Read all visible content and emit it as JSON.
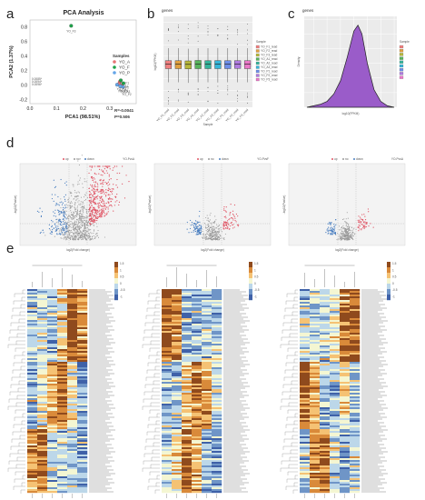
{
  "panels": {
    "a": "a",
    "b": "b",
    "c": "c",
    "d": "d",
    "e": "e"
  },
  "chart_data": [
    {
      "id": "a",
      "type": "scatter",
      "title": "PCA Analysis",
      "xlabel": "PCA1 (98.51%)",
      "ylabel": "PCA2 (1.37%)",
      "xticks": [
        "0.0",
        "0.1",
        "0.2",
        "0.3"
      ],
      "yticks": [
        "-0.2",
        "0.0",
        "0.2",
        "0.4",
        "0.6",
        "0.8"
      ],
      "xlim": [
        0.0,
        0.4
      ],
      "ylim": [
        -0.25,
        0.9
      ],
      "legend_title": "Samples",
      "legend": [
        {
          "name": "YO_A",
          "color": "#e57373"
        },
        {
          "name": "YO_F",
          "color": "#1fa24a"
        },
        {
          "name": "YO_P",
          "color": "#64a5e8"
        }
      ],
      "points": [
        {
          "label": "YO_F3",
          "x": 0.155,
          "y": 0.82,
          "group": 1
        },
        {
          "label": "YO_A1",
          "x": 0.338,
          "y": 0.05,
          "group": 0
        },
        {
          "label": "YO_A2",
          "x": 0.345,
          "y": 0.0,
          "group": 0
        },
        {
          "label": "YO_A3",
          "x": 0.335,
          "y": 0.02,
          "group": 0
        },
        {
          "label": "YO_F1",
          "x": 0.342,
          "y": 0.07,
          "group": 1
        },
        {
          "label": "YO_F2",
          "x": 0.352,
          "y": 0.03,
          "group": 1
        },
        {
          "label": "YO_P1",
          "x": 0.328,
          "y": 0.01,
          "group": 2
        },
        {
          "label": "YO_P2",
          "x": 0.35,
          "y": -0.02,
          "group": 2
        },
        {
          "label": "YO_P3",
          "x": 0.34,
          "y": -0.01,
          "group": 2
        }
      ],
      "left_cluster_labels": [
        "0.0085*",
        "0.0094*",
        "0.0096*"
      ],
      "stats": [
        "R=-0.0041",
        "P=0.506"
      ]
    },
    {
      "id": "b",
      "type": "box",
      "title": "genes",
      "xlabel": "Sample",
      "ylabel": "log10(FPKM)",
      "categories": [
        "YO_F1_read",
        "YO_F2_read",
        "YO_F3_read",
        "YO_A1_read",
        "YO_A2_read",
        "YO_A3_read",
        "YO_P1_read",
        "YO_P2_read",
        "YO_P3_read"
      ],
      "colors": [
        "#f08080",
        "#e0a040",
        "#b8b83a",
        "#59b35c",
        "#35b39a",
        "#37b6d8",
        "#6e8ee8",
        "#b07cdf",
        "#ea78c8"
      ],
      "q1": [
        0.9,
        0.9,
        0.88,
        0.9,
        0.9,
        0.9,
        0.9,
        0.92,
        0.9
      ],
      "median": [
        1.3,
        1.3,
        1.28,
        1.3,
        1.3,
        1.3,
        1.31,
        1.3,
        1.3
      ],
      "q3": [
        1.6,
        1.6,
        1.58,
        1.62,
        1.6,
        1.61,
        1.6,
        1.6,
        1.6
      ],
      "whisker_low": [
        -0.3,
        -0.3,
        -0.35,
        -0.3,
        -0.3,
        -0.32,
        -0.3,
        -0.3,
        -0.3
      ],
      "whisker_high": [
        2.7,
        2.7,
        2.65,
        2.7,
        2.7,
        2.72,
        2.7,
        2.7,
        2.7
      ],
      "ylim": [
        -2.5,
        5.5
      ],
      "legend_title": "Sample"
    },
    {
      "id": "c",
      "type": "area",
      "title": "genes",
      "xlabel": "log10(FPKM)",
      "ylabel": "Density",
      "x": [
        -2.5,
        -2.0,
        -1.5,
        -1.0,
        -0.5,
        0.0,
        0.5,
        1.0,
        1.3,
        1.6,
        2.0,
        2.5,
        3.0,
        3.5,
        4.0
      ],
      "y": [
        0.0,
        0.01,
        0.02,
        0.04,
        0.09,
        0.18,
        0.34,
        0.52,
        0.56,
        0.5,
        0.3,
        0.12,
        0.04,
        0.01,
        0.0
      ],
      "xlim": [
        -2.7,
        4.2
      ],
      "ylim": [
        0,
        0.62
      ],
      "fill": "#9a5cc9",
      "legend_title": "Sample",
      "legend_colors": [
        "#f08080",
        "#e0a040",
        "#b8b83a",
        "#59b35c",
        "#35b39a",
        "#37b6d8",
        "#6e8ee8",
        "#b07cdf",
        "#ea78c8"
      ]
    },
    {
      "id": "d",
      "type": "scatter",
      "subtype": "volcano",
      "xlabel": "log2(Fold change)",
      "ylabel": "-log10(Pvalue)",
      "legend": [
        {
          "name": "up",
          "color": "#e05565"
        },
        {
          "name": "no",
          "color": "#9a9a9a"
        },
        {
          "name": "down",
          "color": "#4b7fc0"
        }
      ],
      "plots": [
        {
          "title": "YO-FvsA",
          "up_genes": 420,
          "down_genes": 150,
          "spread": 1.0,
          "height": 1.0
        },
        {
          "title": "YO-PvsF",
          "up_genes": 80,
          "down_genes": 90,
          "spread": 0.55,
          "height": 0.35
        },
        {
          "title": "YO-PvsA",
          "up_genes": 55,
          "down_genes": 60,
          "spread": 0.45,
          "height": 0.3
        }
      ]
    },
    {
      "id": "e",
      "type": "heatmap",
      "heatmaps": [
        {
          "columns": 6,
          "rows": 112,
          "legend_ticks": [
            "1.5",
            "1",
            "0.5",
            "0",
            "-0.5",
            "-1"
          ]
        },
        {
          "columns": 6,
          "rows": 112,
          "legend_ticks": [
            "1.5",
            "1",
            "0.5",
            "0",
            "-0.5",
            "-1"
          ]
        },
        {
          "columns": 6,
          "rows": 112,
          "legend_ticks": [
            "1.5",
            "1",
            "0.5",
            "0",
            "-0.5",
            "-1"
          ]
        }
      ],
      "colorscale": [
        "#3f61a8",
        "#6f95c7",
        "#bcd7e9",
        "#f4f6d2",
        "#f5c274",
        "#d98a3a",
        "#8f4a1d"
      ]
    }
  ]
}
